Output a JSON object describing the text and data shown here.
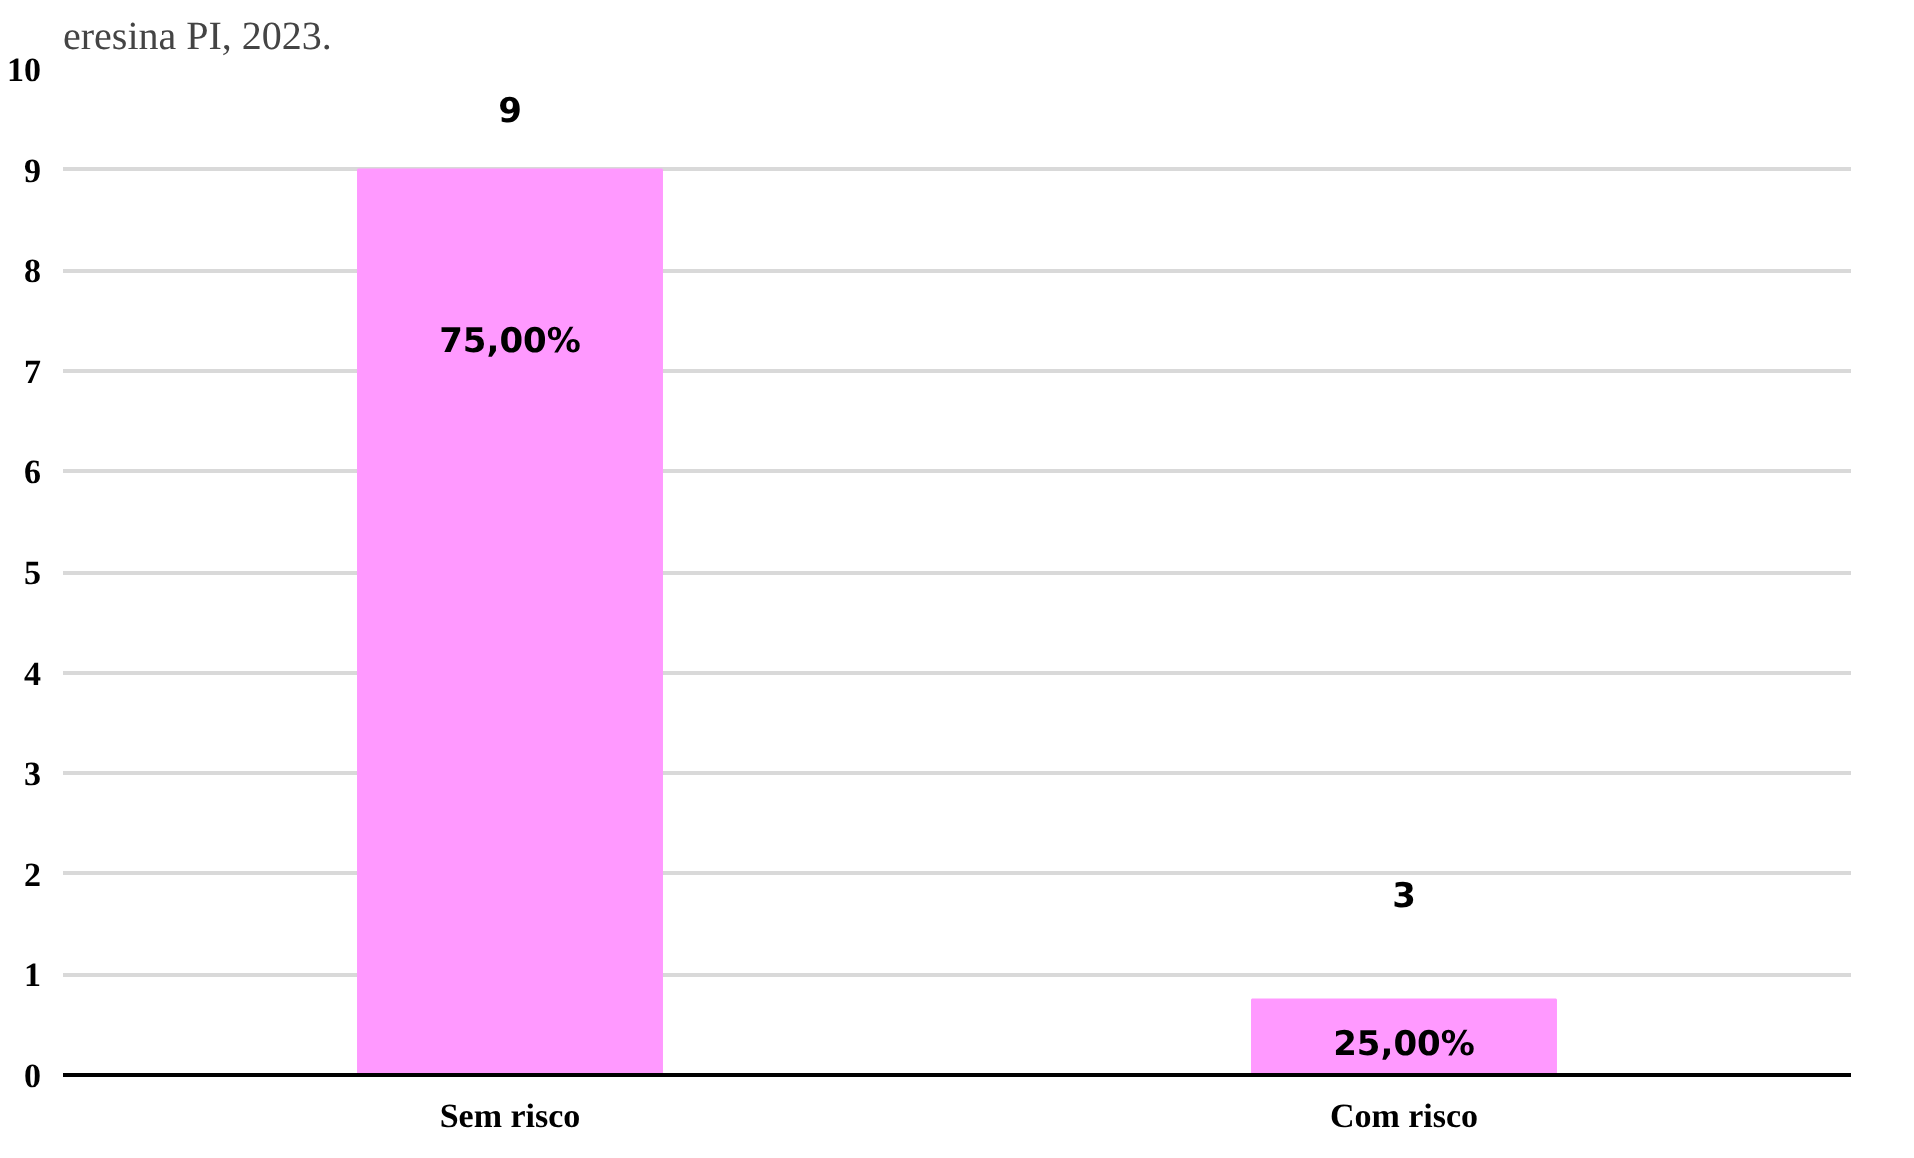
{
  "chart_data": {
    "type": "bar",
    "title": "eresina PI, 2023.",
    "categories": [
      "Sem risco",
      "Com risco"
    ],
    "values": [
      9,
      0.75
    ],
    "color": "#ff99ff",
    "ylim": [
      0,
      10
    ],
    "yticks": [
      0,
      1,
      2,
      3,
      4,
      5,
      6,
      7,
      8,
      9,
      10
    ],
    "grid": "y",
    "annotations": [
      "9",
      "75,00%",
      "3",
      "25,00%"
    ]
  }
}
